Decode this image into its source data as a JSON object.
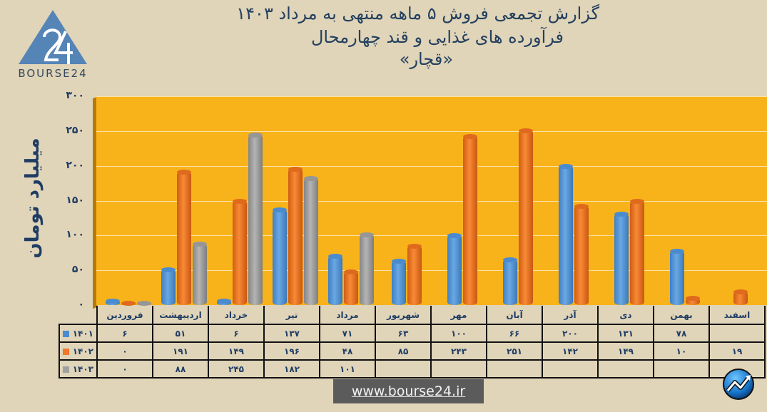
{
  "header": {
    "logo_text": "BOURSE24",
    "title_line1": "گزارش تجمعی فروش ۵ ماهه منتهی به مرداد ۱۴۰۳",
    "title_line2": "فرآورده های غذایی و قند چهارمحال",
    "title_line3": "«قچار»"
  },
  "footer": {
    "website": "www.bourse24.ir"
  },
  "colors": {
    "series_1401": "#4a8bd0",
    "series_1402": "#f0782a",
    "series_1403": "#a0a0a0",
    "plot_background": "#f8b31b",
    "page_background": "#e0d4b9",
    "text": "#1f3d63"
  },
  "chart_data": {
    "type": "bar",
    "title": "گزارش تجمعی فروش ۵ ماهه منتهی به مرداد ۱۴۰۳ - فرآورده های غذایی و قند چهارمحال «قچار»",
    "xlabel": "",
    "ylabel": "میلیارد تومان",
    "ylim": [
      0,
      300
    ],
    "yticks": [
      "۰",
      "۵۰",
      "۱۰۰",
      "۱۵۰",
      "۲۰۰",
      "۲۵۰",
      "۳۰۰"
    ],
    "ytick_values": [
      0,
      50,
      100,
      150,
      200,
      250,
      300
    ],
    "grid": true,
    "legend_position": "table-left",
    "categories": [
      "فروردین",
      "اردیبهشت",
      "خرداد",
      "تیر",
      "مرداد",
      "شهریور",
      "مهر",
      "آبان",
      "آذر",
      "دی",
      "بهمن",
      "اسفند"
    ],
    "series": [
      {
        "name": "۱۴۰۱",
        "values": [
          6,
          51,
          6,
          137,
          71,
          63,
          100,
          66,
          200,
          131,
          78,
          null
        ],
        "labels": [
          "۶",
          "۵۱",
          "۶",
          "۱۳۷",
          "۷۱",
          "۶۳",
          "۱۰۰",
          "۶۶",
          "۲۰۰",
          "۱۳۱",
          "۷۸",
          ""
        ]
      },
      {
        "name": "۱۴۰۲",
        "values": [
          0,
          191,
          149,
          196,
          48,
          85,
          243,
          251,
          142,
          149,
          10,
          19
        ],
        "labels": [
          "۰",
          "۱۹۱",
          "۱۴۹",
          "۱۹۶",
          "۴۸",
          "۸۵",
          "۲۴۳",
          "۲۵۱",
          "۱۴۲",
          "۱۴۹",
          "۱۰",
          "۱۹"
        ]
      },
      {
        "name": "۱۴۰۳",
        "values": [
          0,
          88,
          245,
          182,
          101,
          null,
          null,
          null,
          null,
          null,
          null,
          null
        ],
        "labels": [
          "۰",
          "۸۸",
          "۲۴۵",
          "۱۸۲",
          "۱۰۱",
          "",
          "",
          "",
          "",
          "",
          "",
          ""
        ]
      }
    ]
  }
}
